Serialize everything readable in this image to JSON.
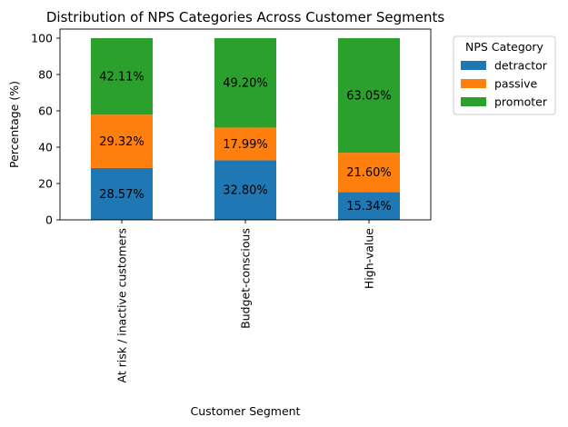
{
  "chart_data": {
    "type": "bar",
    "stacked": true,
    "title": "Distribution of NPS Categories Across Customer Segments",
    "xlabel": "Customer Segment",
    "ylabel": "Percentage (%)",
    "ylim": [
      0,
      105
    ],
    "yticks": [
      0,
      20,
      40,
      60,
      80,
      100
    ],
    "categories": [
      "At risk / inactive customers",
      "Budget-conscious",
      "High-value"
    ],
    "series": [
      {
        "name": "detractor",
        "color": "#1f77b4",
        "values": [
          28.57,
          32.8,
          15.34
        ],
        "labels": [
          "28.57%",
          "32.80%",
          "15.34%"
        ]
      },
      {
        "name": "passive",
        "color": "#ff7f0e",
        "values": [
          29.32,
          17.99,
          21.6
        ],
        "labels": [
          "29.32%",
          "17.99%",
          "21.60%"
        ]
      },
      {
        "name": "promoter",
        "color": "#2ca02c",
        "values": [
          42.11,
          49.2,
          63.05
        ],
        "labels": [
          "42.11%",
          "49.20%",
          "63.05%"
        ]
      }
    ],
    "legend": {
      "title": "NPS Category",
      "placement": "outside-right"
    },
    "grid": false
  }
}
